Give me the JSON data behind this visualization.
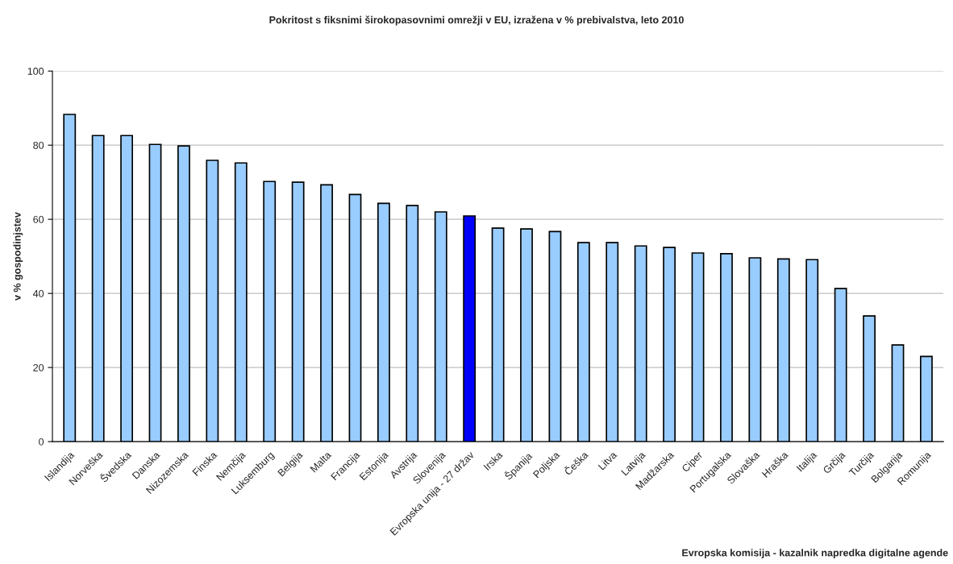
{
  "chart_data": {
    "type": "bar",
    "title": "Pokritost s fiksnimi širokopasovnimi omrežji v EU, izražena v % prebivalstva, leto 2010",
    "ylabel": "v % gospodinjstev",
    "categories": [
      "Islandija",
      "Norveška",
      "Švedska",
      "Danska",
      "Nizozemska",
      "Finska",
      "Nemčija",
      "Luksemburg",
      "Belgija",
      "Malta",
      "Francija",
      "Estonija",
      "Avstrija",
      "Slovenija",
      "Evropska unija - 27 držav",
      "Irska",
      "Španija",
      "Poljska",
      "Češka",
      "Litva",
      "Latvija",
      "Madžarska",
      "Ciper",
      "Portugalska",
      "Slovaška",
      "Hraška",
      "Italija",
      "Grčija",
      "Turčija",
      "Bolgarija",
      "Romunija"
    ],
    "values": [
      88.3,
      82.6,
      82.6,
      80.2,
      79.8,
      75.9,
      75.2,
      70.2,
      70.0,
      69.3,
      66.7,
      64.3,
      63.7,
      62.0,
      60.9,
      57.6,
      57.4,
      56.7,
      53.7,
      53.7,
      52.8,
      52.4,
      50.9,
      50.7,
      49.6,
      49.3,
      49.1,
      41.3,
      33.9,
      26.1,
      23.0
    ],
    "colors": [
      "#99ccff",
      "#99ccff",
      "#99ccff",
      "#99ccff",
      "#99ccff",
      "#99ccff",
      "#99ccff",
      "#99ccff",
      "#99ccff",
      "#99ccff",
      "#99ccff",
      "#99ccff",
      "#99ccff",
      "#99ccff",
      "#0000ff",
      "#99ccff",
      "#99ccff",
      "#99ccff",
      "#99ccff",
      "#99ccff",
      "#99ccff",
      "#99ccff",
      "#99ccff",
      "#99ccff",
      "#99ccff",
      "#99ccff",
      "#99ccff",
      "#99ccff",
      "#99ccff",
      "#99ccff",
      "#99ccff"
    ],
    "ylim": [
      0,
      100
    ],
    "yticks": [
      0,
      20,
      40,
      60,
      80,
      100
    ],
    "grid": "y",
    "annotations": [
      "Evropska komisija - kazalnik napredka digitalne agende"
    ]
  }
}
